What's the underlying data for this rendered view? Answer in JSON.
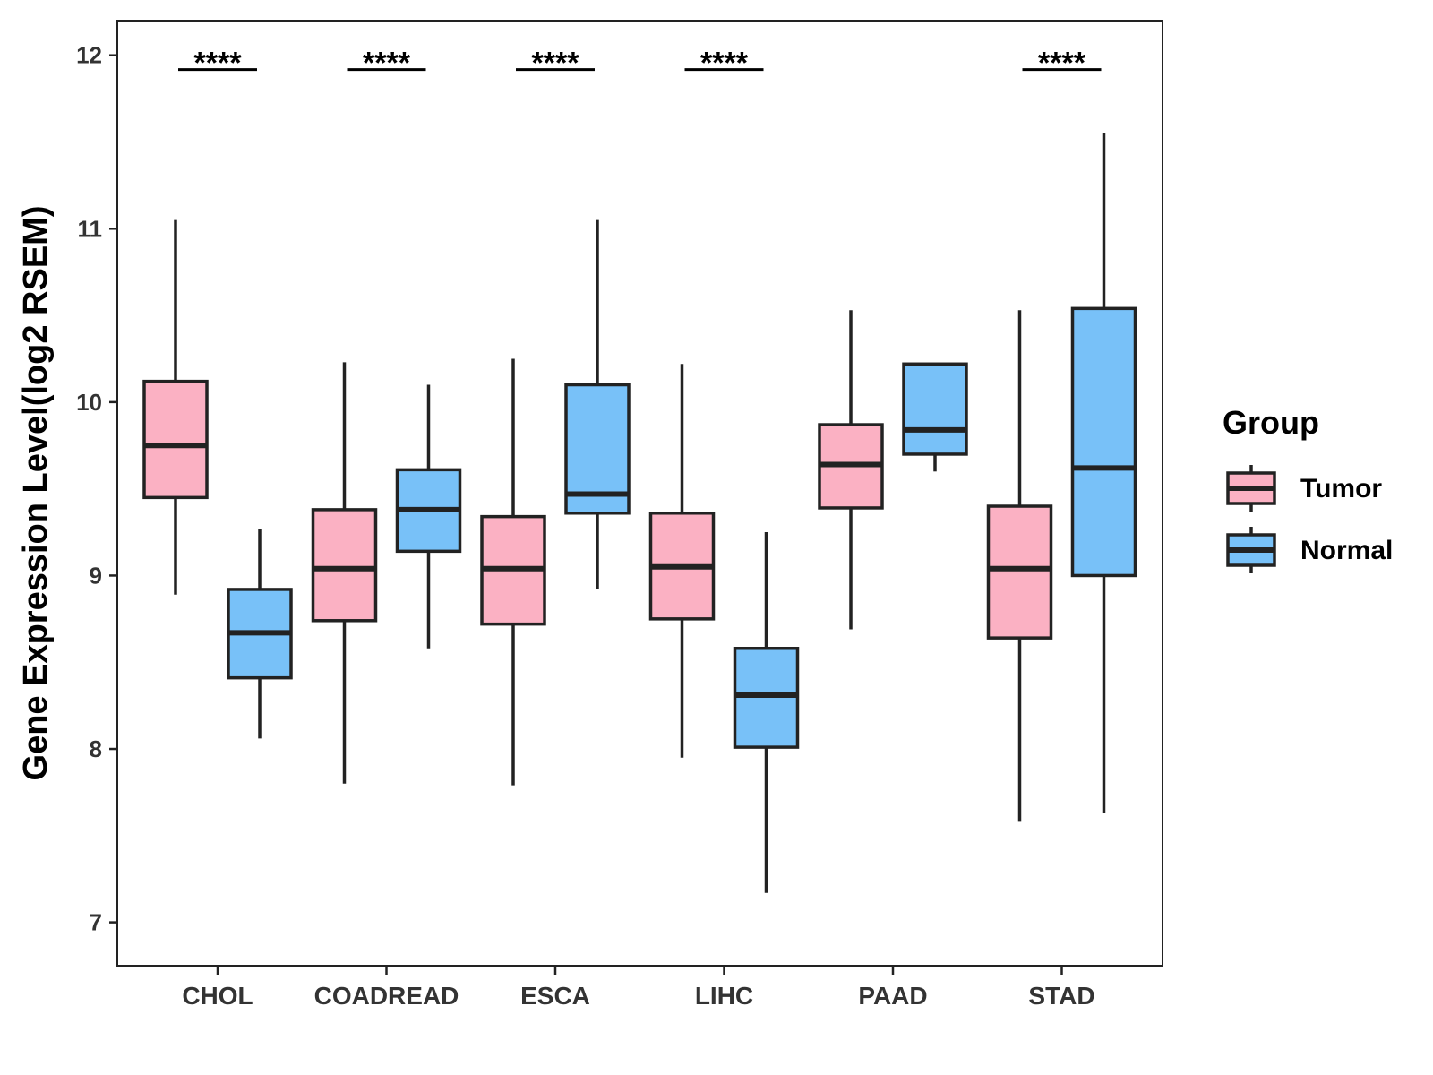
{
  "chart_data": {
    "type": "boxplot",
    "title": "",
    "xlabel": "",
    "ylabel": "Gene Expression Level(log2 RSEM)",
    "ylim": [
      6.75,
      12.2
    ],
    "yticks": [
      7,
      8,
      9,
      10,
      11,
      12
    ],
    "categories": [
      "CHOL",
      "COADREAD",
      "ESCA",
      "LIHC",
      "PAAD",
      "STAD"
    ],
    "legend": {
      "title": "Group",
      "position": "right",
      "entries": [
        {
          "name": "Tumor",
          "color": "#fbb1c3"
        },
        {
          "name": "Normal",
          "color": "#78c1f8"
        }
      ]
    },
    "series": [
      {
        "name": "Tumor",
        "color": "#fbb1c3",
        "boxes": [
          {
            "category": "CHOL",
            "min": 8.89,
            "q1": 9.45,
            "median": 9.75,
            "q3": 10.12,
            "max": 11.05
          },
          {
            "category": "COADREAD",
            "min": 7.8,
            "q1": 8.74,
            "median": 9.04,
            "q3": 9.38,
            "max": 10.23
          },
          {
            "category": "ESCA",
            "min": 7.79,
            "q1": 8.72,
            "median": 9.04,
            "q3": 9.34,
            "max": 10.25
          },
          {
            "category": "LIHC",
            "min": 7.95,
            "q1": 8.75,
            "median": 9.05,
            "q3": 9.36,
            "max": 10.22
          },
          {
            "category": "PAAD",
            "min": 8.69,
            "q1": 9.39,
            "median": 9.64,
            "q3": 9.87,
            "max": 10.53
          },
          {
            "category": "STAD",
            "min": 7.58,
            "q1": 8.64,
            "median": 9.04,
            "q3": 9.4,
            "max": 10.53
          }
        ]
      },
      {
        "name": "Normal",
        "color": "#78c1f8",
        "boxes": [
          {
            "category": "CHOL",
            "min": 8.06,
            "q1": 8.41,
            "median": 8.67,
            "q3": 8.92,
            "max": 9.27
          },
          {
            "category": "COADREAD",
            "min": 8.58,
            "q1": 9.14,
            "median": 9.38,
            "q3": 9.61,
            "max": 10.1
          },
          {
            "category": "ESCA",
            "min": 8.92,
            "q1": 9.36,
            "median": 9.47,
            "q3": 10.1,
            "max": 11.05
          },
          {
            "category": "LIHC",
            "min": 7.17,
            "q1": 8.01,
            "median": 8.31,
            "q3": 8.58,
            "max": 9.25
          },
          {
            "category": "PAAD",
            "min": 9.6,
            "q1": 9.7,
            "median": 9.84,
            "q3": 10.22,
            "max": 10.22
          },
          {
            "category": "STAD",
            "min": 7.63,
            "q1": 9.0,
            "median": 9.62,
            "q3": 10.54,
            "max": 11.55
          }
        ]
      }
    ],
    "significance": [
      {
        "category": "CHOL",
        "label": "****",
        "y": 11.99
      },
      {
        "category": "COADREAD",
        "label": "****",
        "y": 11.99
      },
      {
        "category": "ESCA",
        "label": "****",
        "y": 11.99
      },
      {
        "category": "LIHC",
        "label": "****",
        "y": 11.99
      },
      {
        "category": "STAD",
        "label": "****",
        "y": 11.99
      }
    ]
  }
}
